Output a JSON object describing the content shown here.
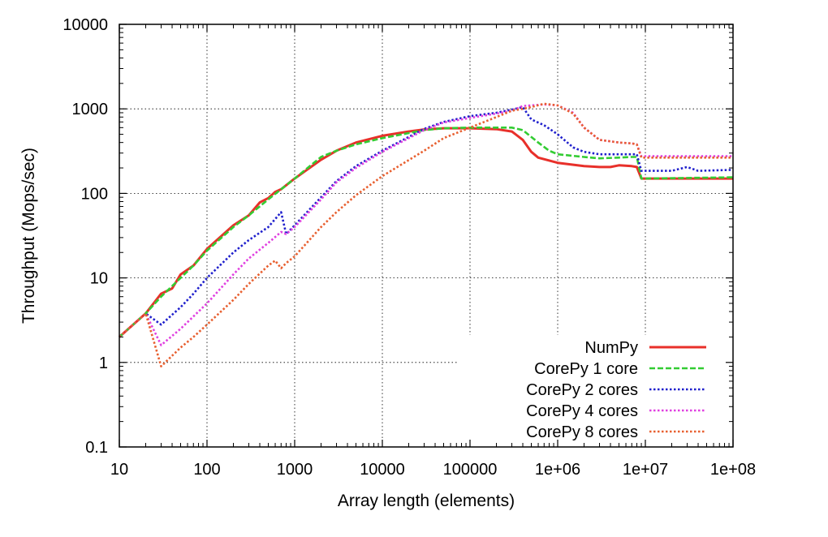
{
  "chart_data": {
    "type": "line",
    "xlabel": "Array length (elements)",
    "ylabel": "Throughput (Mops/sec)",
    "x_scale": "log",
    "y_scale": "log",
    "xlim": [
      10,
      100000000
    ],
    "ylim": [
      0.1,
      10000
    ],
    "x_ticks": [
      {
        "value": 10,
        "label": "10"
      },
      {
        "value": 100,
        "label": "100"
      },
      {
        "value": 1000,
        "label": "1000"
      },
      {
        "value": 10000,
        "label": "10000"
      },
      {
        "value": 100000,
        "label": "100000"
      },
      {
        "value": 1000000,
        "label": "1e+06"
      },
      {
        "value": 10000000,
        "label": "1e+07"
      },
      {
        "value": 100000000,
        "label": "1e+08"
      }
    ],
    "y_ticks": [
      {
        "value": 0.1,
        "label": "0.1"
      },
      {
        "value": 1,
        "label": "1"
      },
      {
        "value": 10,
        "label": "10"
      },
      {
        "value": 100,
        "label": "100"
      },
      {
        "value": 1000,
        "label": "1000"
      },
      {
        "value": 10000,
        "label": "10000"
      }
    ],
    "grid": true,
    "legend_position": "bottom-right",
    "series": [
      {
        "name": "NumPy",
        "color": "#e8302a",
        "dash": "solid",
        "points": [
          [
            10,
            2.0
          ],
          [
            20,
            3.8
          ],
          [
            30,
            6.5
          ],
          [
            40,
            7.5
          ],
          [
            50,
            11
          ],
          [
            70,
            14
          ],
          [
            100,
            22
          ],
          [
            200,
            42
          ],
          [
            300,
            55
          ],
          [
            400,
            78
          ],
          [
            500,
            88
          ],
          [
            600,
            104
          ],
          [
            700,
            112
          ],
          [
            1000,
            150
          ],
          [
            2000,
            250
          ],
          [
            3000,
            320
          ],
          [
            5000,
            400
          ],
          [
            10000,
            480
          ],
          [
            20000,
            540
          ],
          [
            30000,
            570
          ],
          [
            50000,
            590
          ],
          [
            100000,
            590
          ],
          [
            200000,
            575
          ],
          [
            300000,
            540
          ],
          [
            400000,
            430
          ],
          [
            500000,
            310
          ],
          [
            600000,
            265
          ],
          [
            1000000,
            230
          ],
          [
            2000000,
            210
          ],
          [
            3000000,
            205
          ],
          [
            4000000,
            205
          ],
          [
            5000000,
            215
          ],
          [
            7000000,
            210
          ],
          [
            8000000,
            205
          ],
          [
            9000000,
            150
          ],
          [
            100000000,
            150
          ]
        ]
      },
      {
        "name": "CorePy 1 core",
        "color": "#33cc33",
        "dash": "dashed",
        "points": [
          [
            10,
            2.0
          ],
          [
            20,
            3.8
          ],
          [
            30,
            6.0
          ],
          [
            50,
            10
          ],
          [
            70,
            14
          ],
          [
            100,
            21
          ],
          [
            200,
            40
          ],
          [
            300,
            55
          ],
          [
            500,
            85
          ],
          [
            700,
            112
          ],
          [
            1000,
            150
          ],
          [
            2000,
            270
          ],
          [
            3000,
            320
          ],
          [
            5000,
            380
          ],
          [
            10000,
            450
          ],
          [
            30000,
            560
          ],
          [
            50000,
            590
          ],
          [
            100000,
            600
          ],
          [
            200000,
            600
          ],
          [
            300000,
            600
          ],
          [
            400000,
            560
          ],
          [
            600000,
            400
          ],
          [
            800000,
            320
          ],
          [
            1000000,
            290
          ],
          [
            2000000,
            270
          ],
          [
            3000000,
            260
          ],
          [
            5000000,
            265
          ],
          [
            7000000,
            270
          ],
          [
            8000000,
            270
          ],
          [
            9000000,
            150
          ],
          [
            100000000,
            155
          ]
        ]
      },
      {
        "name": "CorePy 2 cores",
        "color": "#1f1fcc",
        "dash": "dotted",
        "points": [
          [
            10,
            2.0
          ],
          [
            20,
            3.8
          ],
          [
            30,
            2.8
          ],
          [
            50,
            4.5
          ],
          [
            70,
            6.5
          ],
          [
            100,
            10
          ],
          [
            200,
            20
          ],
          [
            300,
            28
          ],
          [
            500,
            40
          ],
          [
            700,
            60
          ],
          [
            800,
            33
          ],
          [
            1000,
            42
          ],
          [
            2000,
            90
          ],
          [
            3000,
            140
          ],
          [
            5000,
            210
          ],
          [
            10000,
            320
          ],
          [
            30000,
            580
          ],
          [
            50000,
            700
          ],
          [
            100000,
            820
          ],
          [
            200000,
            900
          ],
          [
            300000,
            980
          ],
          [
            400000,
            1050
          ],
          [
            500000,
            750
          ],
          [
            700000,
            640
          ],
          [
            1000000,
            500
          ],
          [
            1500000,
            350
          ],
          [
            2000000,
            310
          ],
          [
            3000000,
            290
          ],
          [
            5000000,
            290
          ],
          [
            8000000,
            290
          ],
          [
            9000000,
            185
          ],
          [
            20000000,
            185
          ],
          [
            30000000,
            205
          ],
          [
            40000000,
            185
          ],
          [
            100000000,
            190
          ]
        ]
      },
      {
        "name": "CorePy 4 cores",
        "color": "#e040e0",
        "dash": "dotted",
        "points": [
          [
            10,
            2.0
          ],
          [
            20,
            3.8
          ],
          [
            30,
            1.6
          ],
          [
            50,
            2.5
          ],
          [
            70,
            3.5
          ],
          [
            100,
            5
          ],
          [
            200,
            11
          ],
          [
            300,
            17
          ],
          [
            500,
            26
          ],
          [
            700,
            35
          ],
          [
            800,
            33
          ],
          [
            1000,
            40
          ],
          [
            2000,
            85
          ],
          [
            3000,
            135
          ],
          [
            5000,
            200
          ],
          [
            10000,
            310
          ],
          [
            30000,
            560
          ],
          [
            50000,
            690
          ],
          [
            100000,
            780
          ],
          [
            200000,
            880
          ],
          [
            300000,
            950
          ],
          [
            400000,
            1080
          ],
          [
            500000,
            1100
          ],
          [
            700000,
            1130
          ],
          [
            1000000,
            1100
          ],
          [
            1500000,
            900
          ],
          [
            2000000,
            600
          ],
          [
            3000000,
            430
          ],
          [
            5000000,
            400
          ],
          [
            7000000,
            390
          ],
          [
            8000000,
            380
          ],
          [
            9000000,
            275
          ],
          [
            100000000,
            275
          ]
        ]
      },
      {
        "name": "CorePy 8 cores",
        "color": "#e86030",
        "dash": "dotted",
        "points": [
          [
            10,
            2.0
          ],
          [
            20,
            3.8
          ],
          [
            30,
            0.9
          ],
          [
            50,
            1.5
          ],
          [
            70,
            2.0
          ],
          [
            100,
            2.8
          ],
          [
            200,
            5.5
          ],
          [
            300,
            8.5
          ],
          [
            500,
            14
          ],
          [
            600,
            16
          ],
          [
            700,
            13
          ],
          [
            800,
            15
          ],
          [
            1000,
            18
          ],
          [
            2000,
            40
          ],
          [
            3000,
            60
          ],
          [
            5000,
            95
          ],
          [
            10000,
            160
          ],
          [
            30000,
            320
          ],
          [
            50000,
            450
          ],
          [
            100000,
            600
          ],
          [
            200000,
            800
          ],
          [
            300000,
            950
          ],
          [
            400000,
            1000
          ],
          [
            500000,
            1050
          ],
          [
            700000,
            1150
          ],
          [
            1000000,
            1100
          ],
          [
            1500000,
            880
          ],
          [
            2000000,
            600
          ],
          [
            3000000,
            430
          ],
          [
            5000000,
            400
          ],
          [
            7000000,
            390
          ],
          [
            8000000,
            380
          ],
          [
            9000000,
            265
          ],
          [
            100000000,
            265
          ]
        ]
      }
    ]
  }
}
